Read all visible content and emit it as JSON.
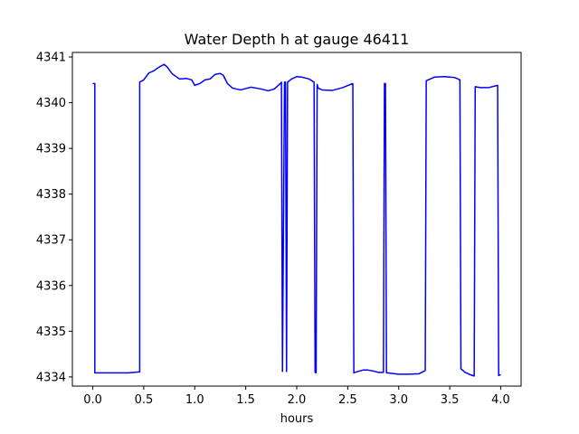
{
  "chart_data": {
    "type": "line",
    "title": "Water Depth h at gauge 46411",
    "xlabel": "hours",
    "ylabel": "",
    "xlim": [
      -0.2,
      4.2
    ],
    "ylim": [
      4333.8,
      4341.1
    ],
    "xticks": [
      0.0,
      0.5,
      1.0,
      1.5,
      2.0,
      2.5,
      3.0,
      3.5,
      4.0
    ],
    "xtick_labels": [
      "0.0",
      "0.5",
      "1.0",
      "1.5",
      "2.0",
      "2.5",
      "3.0",
      "3.5",
      "4.0"
    ],
    "yticks": [
      4334,
      4335,
      4336,
      4337,
      4338,
      4339,
      4340,
      4341
    ],
    "ytick_labels": [
      "4334",
      "4335",
      "4336",
      "4337",
      "4338",
      "4339",
      "4340",
      "4341"
    ],
    "grid": false,
    "series": [
      {
        "name": "",
        "color": "#0000ff",
        "x": [
          0.0,
          0.02,
          0.02,
          0.2,
          0.35,
          0.45,
          0.46,
          0.46,
          0.5,
          0.55,
          0.6,
          0.65,
          0.7,
          0.73,
          0.78,
          0.85,
          0.92,
          0.97,
          1.0,
          1.05,
          1.1,
          1.15,
          1.2,
          1.25,
          1.28,
          1.32,
          1.37,
          1.45,
          1.55,
          1.65,
          1.72,
          1.78,
          1.84,
          1.85,
          1.86,
          1.88,
          1.89,
          1.9,
          1.91,
          1.95,
          2.0,
          2.05,
          2.12,
          2.17,
          2.18,
          2.19,
          2.2,
          2.21,
          2.25,
          2.35,
          2.45,
          2.55,
          2.56,
          2.6,
          2.65,
          2.7,
          2.75,
          2.8,
          2.85,
          2.86,
          2.87,
          2.88,
          2.89,
          3.0,
          3.1,
          3.2,
          3.26,
          3.27,
          3.35,
          3.45,
          3.55,
          3.6,
          3.61,
          3.65,
          3.7,
          3.74,
          3.75,
          3.8,
          3.88,
          3.97,
          3.98,
          4.0
        ],
        "y": [
          4340.42,
          4340.42,
          4334.09,
          4334.09,
          4334.09,
          4334.11,
          4334.11,
          4340.45,
          4340.5,
          4340.65,
          4340.7,
          4340.78,
          4340.84,
          4340.78,
          4340.63,
          4340.52,
          4340.53,
          4340.5,
          4340.38,
          4340.42,
          4340.5,
          4340.52,
          4340.62,
          4340.64,
          4340.6,
          4340.42,
          4340.32,
          4340.28,
          4340.34,
          4340.3,
          4340.26,
          4340.3,
          4340.42,
          4340.45,
          4334.12,
          4340.45,
          4340.45,
          4334.12,
          4340.45,
          4340.52,
          4340.57,
          4340.56,
          4340.52,
          4340.45,
          4334.1,
          4334.09,
          4340.4,
          4340.32,
          4340.28,
          4340.27,
          4340.33,
          4340.42,
          4334.09,
          4334.12,
          4334.15,
          4334.15,
          4334.13,
          4334.1,
          4334.1,
          4340.42,
          4340.42,
          4334.09,
          4334.09,
          4334.06,
          4334.06,
          4334.07,
          4334.14,
          4340.48,
          4340.56,
          4340.57,
          4340.55,
          4340.5,
          4334.18,
          4334.1,
          4334.05,
          4334.02,
          4340.35,
          4340.33,
          4340.33,
          4340.38,
          4334.03,
          4334.05
        ]
      }
    ]
  }
}
